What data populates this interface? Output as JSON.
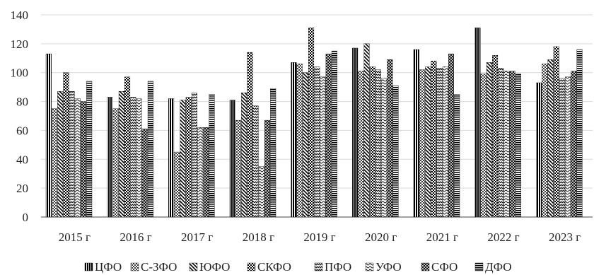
{
  "chart_data": {
    "type": "bar",
    "title": "",
    "xlabel": "",
    "ylabel": "",
    "ylim": [
      0,
      140
    ],
    "yticks": [
      0,
      20,
      40,
      60,
      80,
      100,
      120,
      140
    ],
    "grid": true,
    "legend_position": "bottom",
    "categories": [
      "2015 г",
      "2016 г",
      "2017 г",
      "2018 г",
      "2019 г",
      "2020 г",
      "2021 г",
      "2022 г",
      "2023 г"
    ],
    "series": [
      {
        "name": "ЦФО",
        "pattern": "vlines",
        "values": [
          113,
          83,
          82,
          81,
          107,
          117,
          116,
          131,
          93
        ]
      },
      {
        "name": "С-ЗФО",
        "pattern": "dots",
        "values": [
          75,
          75,
          45,
          67,
          106,
          101,
          102,
          99,
          106
        ]
      },
      {
        "name": "ЮФО",
        "pattern": "diagonal",
        "values": [
          87,
          87,
          81,
          86,
          100,
          120,
          104,
          107,
          109
        ]
      },
      {
        "name": "СКФО",
        "pattern": "checker",
        "values": [
          100,
          97,
          83,
          114,
          131,
          104,
          108,
          112,
          118
        ]
      },
      {
        "name": "ПФО",
        "pattern": "zigzag",
        "values": [
          87,
          83,
          86,
          77,
          104,
          102,
          103,
          103,
          96
        ]
      },
      {
        "name": "УФО",
        "pattern": "hwaves",
        "values": [
          82,
          82,
          62,
          35,
          97,
          96,
          104,
          101,
          97
        ]
      },
      {
        "name": "СФО",
        "pattern": "crosshatch",
        "values": [
          80,
          61,
          62,
          67,
          113,
          109,
          113,
          101,
          101
        ]
      },
      {
        "name": "ДФО",
        "pattern": "hlines",
        "values": [
          94,
          94,
          85,
          89,
          115,
          91,
          85,
          99,
          116
        ]
      }
    ]
  }
}
